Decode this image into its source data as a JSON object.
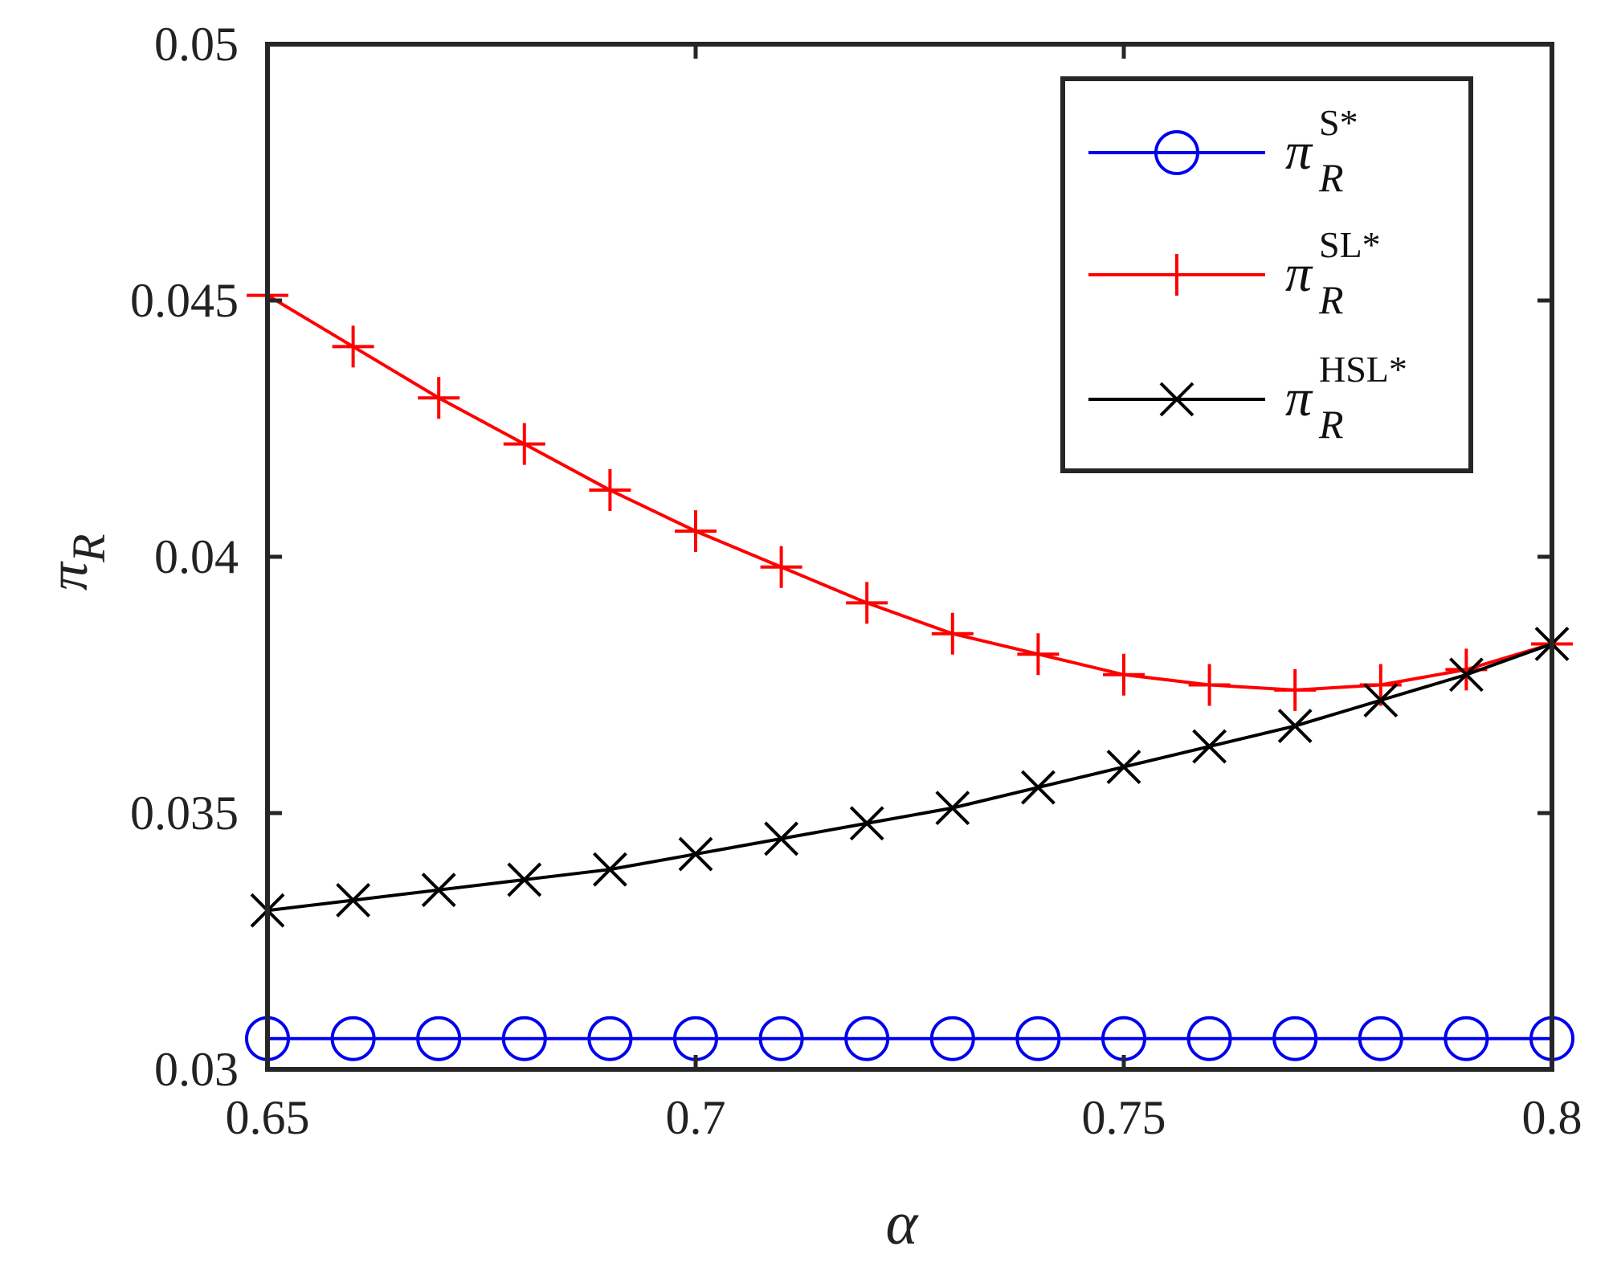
{
  "chart_data": {
    "type": "line",
    "title": "",
    "xlabel": "α",
    "ylabel": {
      "base": "π",
      "sub": "R"
    },
    "xlim": [
      0.65,
      0.8
    ],
    "ylim": [
      0.03,
      0.05
    ],
    "xticks": [
      0.65,
      0.7,
      0.75,
      0.8
    ],
    "xtick_labels": [
      "0.65",
      "0.7",
      "0.75",
      "0.8"
    ],
    "yticks": [
      0.03,
      0.035,
      0.04,
      0.045,
      0.05
    ],
    "ytick_labels": [
      "0.03",
      "0.035",
      "0.04",
      "0.045",
      "0.05"
    ],
    "grid": false,
    "legend_position": "top-right",
    "x": [
      0.65,
      0.66,
      0.67,
      0.68,
      0.69,
      0.7,
      0.71,
      0.72,
      0.73,
      0.74,
      0.75,
      0.76,
      0.77,
      0.78,
      0.79,
      0.8
    ],
    "series": [
      {
        "name": "π_R^S*",
        "legend_base": "π",
        "legend_sup": "S*",
        "legend_sub": "R",
        "color": "#0000ee",
        "marker": "circle",
        "values": [
          0.0306,
          0.0306,
          0.0306,
          0.0306,
          0.0306,
          0.0306,
          0.0306,
          0.0306,
          0.0306,
          0.0306,
          0.0306,
          0.0306,
          0.0306,
          0.0306,
          0.0306,
          0.0306
        ]
      },
      {
        "name": "π_R^SL*",
        "legend_base": "π",
        "legend_sup": "SL*",
        "legend_sub": "R",
        "color": "#ff0000",
        "marker": "plus",
        "values": [
          0.0451,
          0.0441,
          0.0431,
          0.0422,
          0.0413,
          0.0405,
          0.0398,
          0.0391,
          0.0385,
          0.0381,
          0.0377,
          0.0375,
          0.0374,
          0.0375,
          0.0378,
          0.0383
        ]
      },
      {
        "name": "π_R^HSL*",
        "legend_base": "π",
        "legend_sup": "HSL*",
        "legend_sub": "R",
        "color": "#000000",
        "marker": "x",
        "values": [
          0.0331,
          0.0333,
          0.0335,
          0.0337,
          0.0339,
          0.0342,
          0.0345,
          0.0348,
          0.0351,
          0.0355,
          0.0359,
          0.0363,
          0.0367,
          0.0372,
          0.0377,
          0.0383
        ]
      }
    ]
  }
}
